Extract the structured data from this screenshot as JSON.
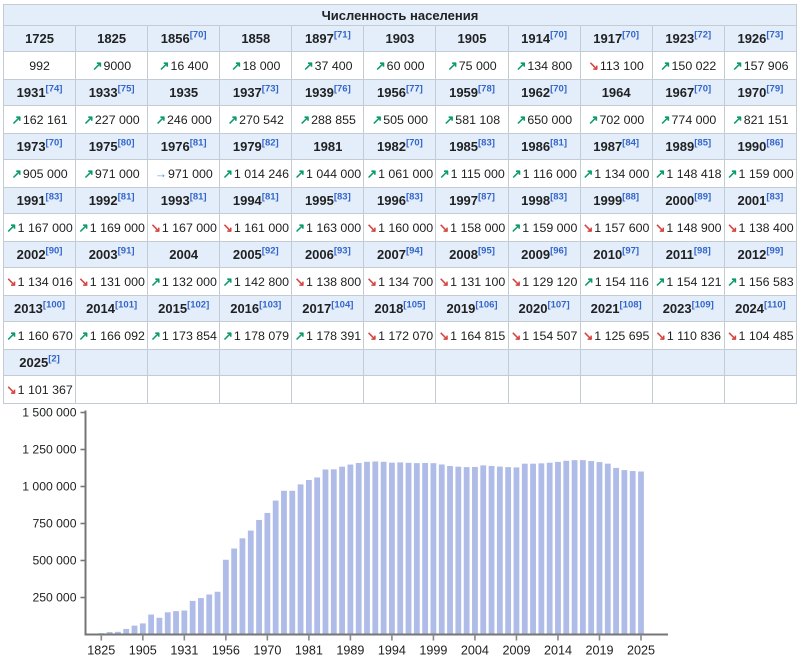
{
  "table": {
    "title": "Численность населения",
    "columns": 11,
    "cells": [
      {
        "year": "1725",
        "ref": "",
        "value": "992",
        "trend": "none"
      },
      {
        "year": "1825",
        "ref": "",
        "value": "9000",
        "trend": "up"
      },
      {
        "year": "1856",
        "ref": "70",
        "value": "16 400",
        "trend": "up"
      },
      {
        "year": "1858",
        "ref": "",
        "value": "18 000",
        "trend": "up"
      },
      {
        "year": "1897",
        "ref": "71",
        "value": "37 400",
        "trend": "up"
      },
      {
        "year": "1903",
        "ref": "",
        "value": "60 000",
        "trend": "up"
      },
      {
        "year": "1905",
        "ref": "",
        "value": "75 000",
        "trend": "up"
      },
      {
        "year": "1914",
        "ref": "70",
        "value": "134 800",
        "trend": "up"
      },
      {
        "year": "1917",
        "ref": "70",
        "value": "113 100",
        "trend": "down"
      },
      {
        "year": "1923",
        "ref": "72",
        "value": "150 022",
        "trend": "up"
      },
      {
        "year": "1926",
        "ref": "73",
        "value": "157 906",
        "trend": "up"
      },
      {
        "year": "1931",
        "ref": "74",
        "value": "162 161",
        "trend": "up"
      },
      {
        "year": "1933",
        "ref": "75",
        "value": "227 000",
        "trend": "up"
      },
      {
        "year": "1935",
        "ref": "",
        "value": "246 000",
        "trend": "up"
      },
      {
        "year": "1937",
        "ref": "73",
        "value": "270 542",
        "trend": "up"
      },
      {
        "year": "1939",
        "ref": "76",
        "value": "288 855",
        "trend": "up"
      },
      {
        "year": "1956",
        "ref": "77",
        "value": "505 000",
        "trend": "up"
      },
      {
        "year": "1959",
        "ref": "78",
        "value": "581 108",
        "trend": "up"
      },
      {
        "year": "1962",
        "ref": "70",
        "value": "650 000",
        "trend": "up"
      },
      {
        "year": "1964",
        "ref": "",
        "value": "702 000",
        "trend": "up"
      },
      {
        "year": "1967",
        "ref": "70",
        "value": "774 000",
        "trend": "up"
      },
      {
        "year": "1970",
        "ref": "79",
        "value": "821 151",
        "trend": "up"
      },
      {
        "year": "1973",
        "ref": "70",
        "value": "905 000",
        "trend": "up"
      },
      {
        "year": "1975",
        "ref": "80",
        "value": "971 000",
        "trend": "up"
      },
      {
        "year": "1976",
        "ref": "81",
        "value": "971 000",
        "trend": "same"
      },
      {
        "year": "1979",
        "ref": "82",
        "value": "1 014 246",
        "trend": "up"
      },
      {
        "year": "1981",
        "ref": "",
        "value": "1 044 000",
        "trend": "up"
      },
      {
        "year": "1982",
        "ref": "70",
        "value": "1 061 000",
        "trend": "up"
      },
      {
        "year": "1985",
        "ref": "83",
        "value": "1 115 000",
        "trend": "up"
      },
      {
        "year": "1986",
        "ref": "81",
        "value": "1 116 000",
        "trend": "up"
      },
      {
        "year": "1987",
        "ref": "84",
        "value": "1 134 000",
        "trend": "up"
      },
      {
        "year": "1989",
        "ref": "85",
        "value": "1 148 418",
        "trend": "up"
      },
      {
        "year": "1990",
        "ref": "86",
        "value": "1 159 000",
        "trend": "up"
      },
      {
        "year": "1991",
        "ref": "83",
        "value": "1 167 000",
        "trend": "up"
      },
      {
        "year": "1992",
        "ref": "81",
        "value": "1 169 000",
        "trend": "up"
      },
      {
        "year": "1993",
        "ref": "81",
        "value": "1 167 000",
        "trend": "down"
      },
      {
        "year": "1994",
        "ref": "81",
        "value": "1 161 000",
        "trend": "down"
      },
      {
        "year": "1995",
        "ref": "83",
        "value": "1 163 000",
        "trend": "up"
      },
      {
        "year": "1996",
        "ref": "83",
        "value": "1 160 000",
        "trend": "down"
      },
      {
        "year": "1997",
        "ref": "87",
        "value": "1 158 000",
        "trend": "down"
      },
      {
        "year": "1998",
        "ref": "83",
        "value": "1 159 000",
        "trend": "up"
      },
      {
        "year": "1999",
        "ref": "88",
        "value": "1 157 600",
        "trend": "down"
      },
      {
        "year": "2000",
        "ref": "89",
        "value": "1 148 900",
        "trend": "down"
      },
      {
        "year": "2001",
        "ref": "83",
        "value": "1 138 400",
        "trend": "down"
      },
      {
        "year": "2002",
        "ref": "90",
        "value": "1 134 016",
        "trend": "down"
      },
      {
        "year": "2003",
        "ref": "91",
        "value": "1 131 000",
        "trend": "down"
      },
      {
        "year": "2004",
        "ref": "",
        "value": "1 132 000",
        "trend": "up"
      },
      {
        "year": "2005",
        "ref": "92",
        "value": "1 142 800",
        "trend": "up"
      },
      {
        "year": "2006",
        "ref": "93",
        "value": "1 138 800",
        "trend": "down"
      },
      {
        "year": "2007",
        "ref": "94",
        "value": "1 134 700",
        "trend": "down"
      },
      {
        "year": "2008",
        "ref": "95",
        "value": "1 131 100",
        "trend": "down"
      },
      {
        "year": "2009",
        "ref": "96",
        "value": "1 129 120",
        "trend": "down"
      },
      {
        "year": "2010",
        "ref": "97",
        "value": "1 154 116",
        "trend": "up"
      },
      {
        "year": "2011",
        "ref": "98",
        "value": "1 154 121",
        "trend": "up"
      },
      {
        "year": "2012",
        "ref": "99",
        "value": "1 156 583",
        "trend": "up"
      },
      {
        "year": "2013",
        "ref": "100",
        "value": "1 160 670",
        "trend": "up"
      },
      {
        "year": "2014",
        "ref": "101",
        "value": "1 166 092",
        "trend": "up"
      },
      {
        "year": "2015",
        "ref": "102",
        "value": "1 173 854",
        "trend": "up"
      },
      {
        "year": "2016",
        "ref": "103",
        "value": "1 178 079",
        "trend": "up"
      },
      {
        "year": "2017",
        "ref": "104",
        "value": "1 178 391",
        "trend": "up"
      },
      {
        "year": "2018",
        "ref": "105",
        "value": "1 172 070",
        "trend": "down"
      },
      {
        "year": "2019",
        "ref": "106",
        "value": "1 164 815",
        "trend": "down"
      },
      {
        "year": "2020",
        "ref": "107",
        "value": "1 154 507",
        "trend": "down"
      },
      {
        "year": "2021",
        "ref": "108",
        "value": "1 125 695",
        "trend": "down"
      },
      {
        "year": "2023",
        "ref": "109",
        "value": "1 110 836",
        "trend": "down"
      },
      {
        "year": "2024",
        "ref": "110",
        "value": "1 104 485",
        "trend": "down"
      },
      {
        "year": "2025",
        "ref": "2",
        "value": "1 101 367",
        "trend": "down"
      }
    ]
  },
  "icons": {
    "up": "↗",
    "down": "↘",
    "same": "→"
  },
  "colors": {
    "header_bg": "#e4eefa",
    "inner_border": "#c3cbd3",
    "outer_border": "#a2a9b1",
    "link": "#3366cc",
    "text": "#202122",
    "up": "#0c9a6b",
    "down": "#d64541",
    "same": "#3d96e8",
    "bar": "#b0bce8",
    "axis": "#767676",
    "tick": "#8a8a8a"
  },
  "chart_data": {
    "type": "bar",
    "title": "",
    "xlabel": "",
    "ylabel": "",
    "grid": false,
    "legend": false,
    "ylim": [
      0,
      1500000
    ],
    "yticks": [
      250000,
      500000,
      750000,
      1000000,
      1250000,
      1500000
    ],
    "ytick_labels": [
      "250 000",
      "500 000",
      "750 000",
      "1 000 000",
      "1 250 000",
      "1 500 000"
    ],
    "x": [
      "1725",
      "1825",
      "1856",
      "1858",
      "1897",
      "1903",
      "1905",
      "1914",
      "1917",
      "1923",
      "1926",
      "1931",
      "1933",
      "1935",
      "1937",
      "1939",
      "1956",
      "1959",
      "1962",
      "1964",
      "1967",
      "1970",
      "1973",
      "1975",
      "1976",
      "1979",
      "1981",
      "1982",
      "1985",
      "1986",
      "1987",
      "1989",
      "1990",
      "1991",
      "1992",
      "1993",
      "1994",
      "1995",
      "1996",
      "1997",
      "1998",
      "1999",
      "2000",
      "2001",
      "2002",
      "2003",
      "2004",
      "2005",
      "2006",
      "2007",
      "2008",
      "2009",
      "2010",
      "2011",
      "2012",
      "2013",
      "2014",
      "2015",
      "2016",
      "2017",
      "2018",
      "2019",
      "2020",
      "2021",
      "2023",
      "2024",
      "2025"
    ],
    "values": [
      992,
      9000,
      16400,
      18000,
      37400,
      60000,
      75000,
      134800,
      113100,
      150022,
      157906,
      162161,
      227000,
      246000,
      270542,
      288855,
      505000,
      581108,
      650000,
      702000,
      774000,
      821151,
      905000,
      971000,
      971000,
      1014246,
      1044000,
      1061000,
      1115000,
      1116000,
      1134000,
      1148418,
      1159000,
      1167000,
      1169000,
      1167000,
      1161000,
      1163000,
      1160000,
      1158000,
      1159000,
      1157600,
      1148900,
      1138400,
      1134016,
      1131000,
      1132000,
      1142800,
      1138800,
      1134700,
      1131100,
      1129120,
      1154116,
      1154121,
      1156583,
      1160670,
      1166092,
      1173854,
      1178079,
      1178391,
      1172070,
      1164815,
      1154507,
      1125695,
      1110836,
      1104485,
      1101367
    ],
    "xtick_indices": [
      1,
      6,
      11,
      16,
      21,
      26,
      31,
      36,
      41,
      46,
      51,
      56,
      61,
      66
    ],
    "xtick_labels": [
      "1825",
      "1905",
      "1931",
      "1956",
      "1970",
      "1981",
      "1989",
      "1994",
      "1999",
      "2004",
      "2009",
      "2014",
      "2019",
      "2025"
    ]
  }
}
